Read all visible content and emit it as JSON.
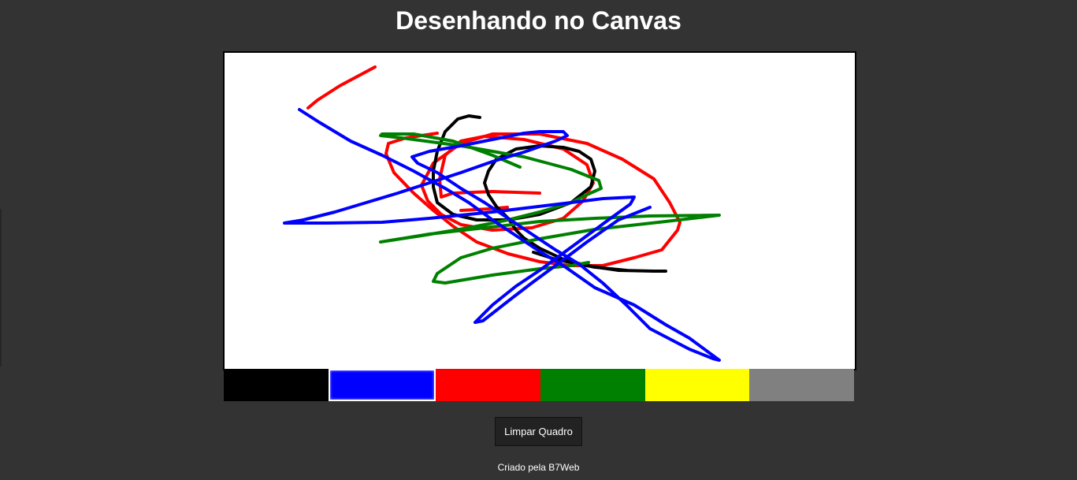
{
  "page": {
    "title": "Desenhando no Canvas",
    "footer": "Criado pela B7Web"
  },
  "toolbar": {
    "clear_label": "Limpar Quadro"
  },
  "palette": {
    "selected": "blue",
    "colors": [
      {
        "name": "black",
        "hex": "#000000"
      },
      {
        "name": "blue",
        "hex": "#0000ff"
      },
      {
        "name": "red",
        "hex": "#ff0000"
      },
      {
        "name": "green",
        "hex": "#008000"
      },
      {
        "name": "yellow",
        "hex": "#ffff00"
      },
      {
        "name": "gray",
        "hex": "#808080"
      }
    ]
  }
}
